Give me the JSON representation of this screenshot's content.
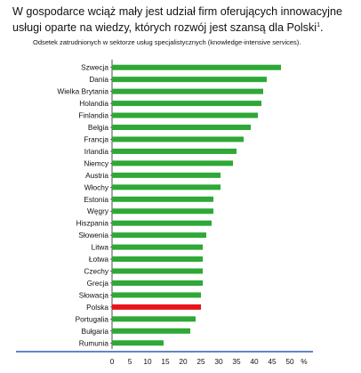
{
  "chart_data": {
    "type": "bar",
    "orientation": "horizontal",
    "title": "W gospodarce wciąż mały jest udział firm oferujących innowacyjne usługi oparte na wiedzy, których rozwój jest szansą dla Polski",
    "title_footnote": "1",
    "subtitle": "Odsetek zatrudnionych w sektorze usług specjalistycznych (knowledge-intensive services).",
    "categories": [
      "Szwecja",
      "Dania",
      "Wielka Brytania",
      "Holandia",
      "Finlandia",
      "Belgia",
      "Francja",
      "Irlandia",
      "Niemcy",
      "Austria",
      "Włochy",
      "Estonia",
      "Węgry",
      "Hiszpania",
      "Słowenia",
      "Litwa",
      "Łotwa",
      "Czechy",
      "Grecja",
      "Słowacja",
      "Polska",
      "Portugalia",
      "Bułgaria",
      "Rumunia"
    ],
    "values": [
      47.5,
      43.5,
      42.5,
      42,
      41,
      39,
      37,
      35,
      34,
      30.5,
      30.5,
      28.5,
      28.5,
      28,
      26.5,
      25.5,
      25.5,
      25.5,
      25.5,
      25,
      25,
      23.5,
      22,
      14.5
    ],
    "highlight": "Polska",
    "bar_color": "#2ea836",
    "highlight_color": "#e8141c",
    "xlim": [
      0,
      50
    ],
    "xticks": [
      "0",
      "5",
      "10",
      "15",
      "20",
      "25",
      "30",
      "35",
      "40",
      "45",
      "50"
    ],
    "xunit": "%",
    "grid": false
  }
}
